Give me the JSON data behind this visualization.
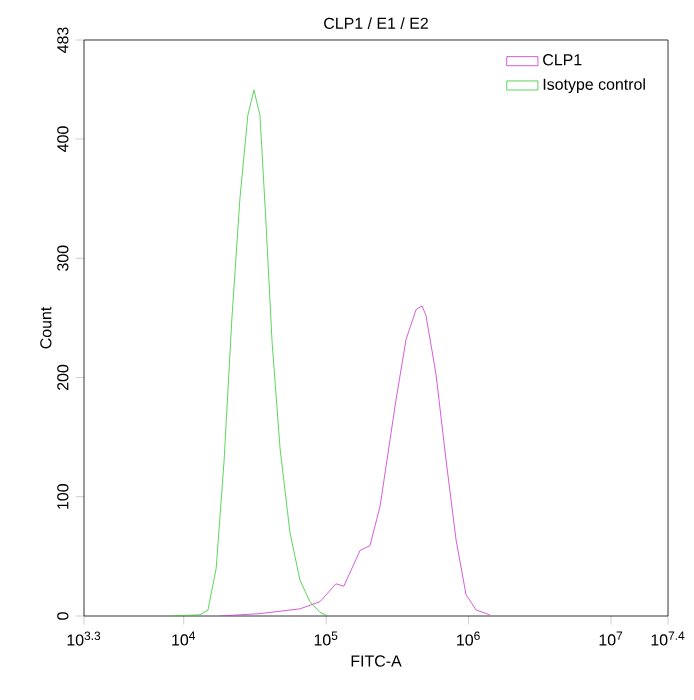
{
  "chart_data": {
    "type": "line",
    "title": "CLP1 / E1 / E2",
    "xlabel": "FITC-A",
    "ylabel": "Count",
    "log": "x",
    "xlim": [
      1995.26,
      25118864
    ],
    "ylim": [
      0,
      483
    ],
    "xticks": [
      {
        "value": 1995.26,
        "label": "10$^{3.3}$"
      },
      {
        "value": 10000,
        "label": "10$^{4}$"
      },
      {
        "value": 100000,
        "label": "10$^{5}$"
      },
      {
        "value": 1000000,
        "label": "10$^{6}$"
      },
      {
        "value": 10000000,
        "label": "10$^{7}$"
      },
      {
        "value": 25118864,
        "label": "10$^{7.4}$"
      }
    ],
    "yticks": [
      0,
      100,
      200,
      300,
      400,
      483
    ],
    "legend": "top right",
    "marker": "none",
    "line_style": "solid",
    "series": [
      {
        "name": "CLP1",
        "color": "#cc33cc",
        "x": [
          18000,
          34300,
          65500,
          90600,
          117000,
          133000,
          173000,
          203000,
          239000,
          281000,
          309000,
          364000,
          428000,
          471000,
          502000,
          590000,
          694000,
          816000,
          959000,
          1130000,
          1410000
        ],
        "values": [
          0,
          2,
          6,
          12,
          27,
          25,
          55,
          59,
          92,
          148,
          181,
          232,
          257,
          260,
          252,
          203,
          131,
          64,
          18,
          5,
          1
        ]
      },
      {
        "name": "Isotype control",
        "color": "#33cc33",
        "x": [
          8020,
          13000,
          14800,
          16900,
          19200,
          21800,
          24800,
          28200,
          31100,
          34300,
          37800,
          41700,
          47500,
          55700,
          65500,
          77000,
          90600,
          103000
        ],
        "values": [
          0,
          1,
          5,
          40,
          130,
          250,
          350,
          420,
          441,
          420,
          330,
          230,
          140,
          70,
          30,
          12,
          3,
          0
        ]
      }
    ]
  }
}
